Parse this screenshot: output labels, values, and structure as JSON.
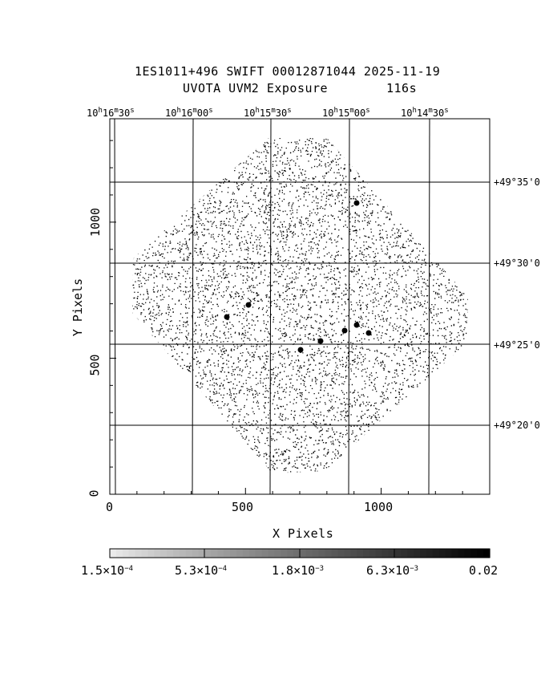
{
  "header": {
    "title": "1ES1011+496 SWIFT 00012871044 2025-11-19",
    "subtitle_left": "UVOTA UVM2 Exposure",
    "subtitle_right": "116s"
  },
  "axes": {
    "xlabel": "X Pixels",
    "ylabel": "Y Pixels",
    "x_ticks": [
      "0",
      "500",
      "1000"
    ],
    "y_ticks": [
      "0",
      "500",
      "1000"
    ],
    "ra_ticks": [
      {
        "h": "10",
        "m": "16",
        "s": "30"
      },
      {
        "h": "10",
        "m": "16",
        "s": "00"
      },
      {
        "h": "10",
        "m": "15",
        "s": "30"
      },
      {
        "h": "10",
        "m": "15",
        "s": "00"
      },
      {
        "h": "10",
        "m": "14",
        "s": "30"
      }
    ],
    "dec_ticks": [
      "+49°35'0",
      "+49°30'0",
      "+49°25'0",
      "+49°20'0"
    ]
  },
  "colorbar": {
    "labels": [
      {
        "mant": "1.5×10",
        "exp": "−4"
      },
      {
        "mant": "5.3×10",
        "exp": "−4"
      },
      {
        "mant": "1.8×10",
        "exp": "−3"
      },
      {
        "mant": "6.3×10",
        "exp": "−3"
      },
      {
        "mant": "0.02",
        "exp": ""
      }
    ]
  }
}
